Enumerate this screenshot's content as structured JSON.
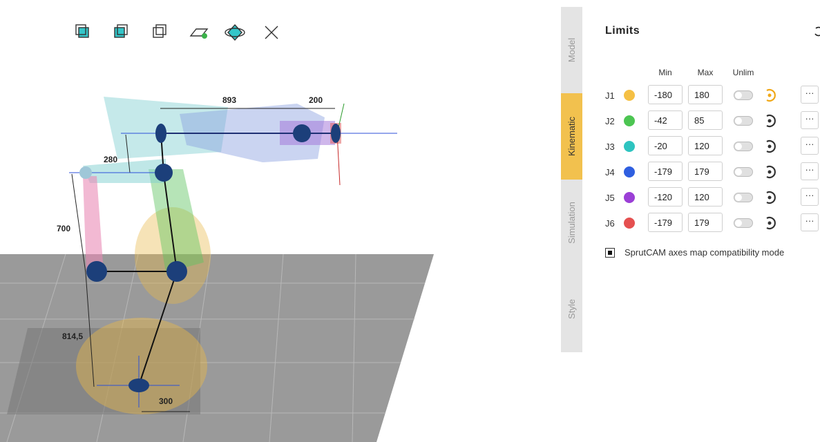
{
  "viewport": {
    "dimensions": [
      {
        "label": "893"
      },
      {
        "label": "200"
      },
      {
        "label": "280"
      },
      {
        "label": "700"
      },
      {
        "label": "814,5"
      },
      {
        "label": "300"
      }
    ]
  },
  "tabs": [
    "Model",
    "Kinematic",
    "Simulation",
    "Style"
  ],
  "active_tab": 1,
  "panel": {
    "title": "Limits",
    "columns": [
      "Min",
      "Max",
      "Unlim"
    ],
    "rows": [
      {
        "joint": "J1",
        "color": "#f5c044",
        "min": -180,
        "max": 180
      },
      {
        "joint": "J2",
        "color": "#4cc552",
        "min": -42,
        "max": 85
      },
      {
        "joint": "J3",
        "color": "#2ec4c0",
        "min": -20,
        "max": 120
      },
      {
        "joint": "J4",
        "color": "#2f5fe0",
        "min": -179,
        "max": 179
      },
      {
        "joint": "J5",
        "color": "#9b3fd6",
        "min": -120,
        "max": 120
      },
      {
        "joint": "J6",
        "color": "#e55050",
        "min": -179,
        "max": 179
      }
    ],
    "checkbox": "SprutCAM axes map compatibility mode"
  }
}
